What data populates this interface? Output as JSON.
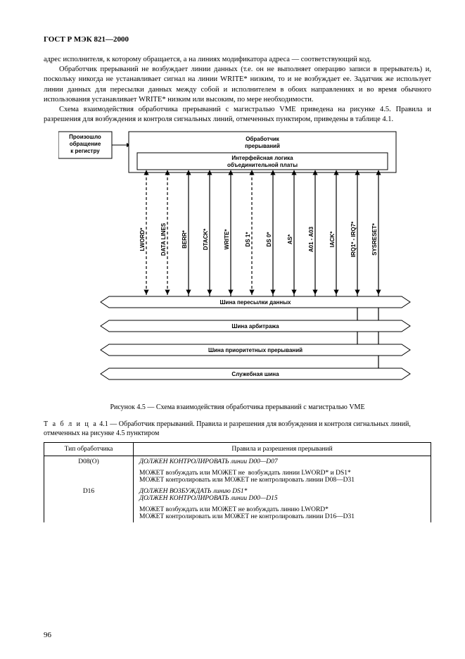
{
  "header": "ГОСТ Р МЭК 821—2000",
  "para1": "адрес исполнителя, к которому обращается, а на линиях модификатора адреса — соответствующий код.",
  "para2": "Обработчик прерываний не возбуждает линии данных (т.е. он не выполняет операцию записи в прерыватель) и, поскольку никогда не устанавливает сигнал на линии WRITE* низким, то и не возбуждает ее. Задатчик же использует линии данных для пересылки данных между собой и исполнителем в обоих направлениях и во время обычного использования устанавливает WRITE* низким или высоким, по мере необходимости.",
  "para3": "Схема взаимодействия обработчика прерываний с магистралью VME приведена на рисунке 4.5. Правила и разрешения для возбуждения и контроля сигнальных линий, отмеченных пунктиром, приведены в таблице 4.1.",
  "caption": "Рисунок 4.5 — Схема взаимодействия обработчика прерываний с магистралью VME",
  "table_title_a": "Т а б л и ц а",
  "table_title_b": "4.1 — Обработчик прерываний. Правила и разрешения для возбуждения и контроля сигнальных линий, отмеченных на рисунке 4.5 пунктиром",
  "th1": "Тип обработчика",
  "th2": "Правила и разрешения прерываний",
  "r1c1": "D08(O)",
  "r1l1": "ДОЛЖЕН КОНТРОЛИРОВАТЬ линии D00—D07",
  "r1l2": "МОЖЕТ возбуждать или МОЖЕТ не  возбуждать линии LWORD* и DS1*",
  "r1l3": "МОЖЕТ контролировать или МОЖЕТ не контролировать линии D08—D31",
  "r2c1": "D16",
  "r2l1": "ДОЛЖЕН ВОЗБУЖДАТЬ линию DS1*",
  "r2l2": "ДОЛЖЕН КОНТРОЛИРОВАТЬ линии D00—D15",
  "r2l3": "МОЖЕТ возбуждать или МОЖЕТ не возбуждать линию LWORD*",
  "r2l4": "МОЖЕТ контролировать или МОЖЕТ не контролировать линии D16—D31",
  "pagenum": "96",
  "diagram": {
    "top_left_box": [
      "Произошло",
      "обращение",
      "к регистру"
    ],
    "top_right_box": [
      "Обработчик",
      "прерываний"
    ],
    "inner_box": [
      "Интерфейсная логика",
      "объединительной платы"
    ],
    "signals": [
      {
        "label": "LWORD*",
        "dashed": true,
        "arrows": "up"
      },
      {
        "label": "DATA LINES",
        "dashed": true,
        "arrows": "down"
      },
      {
        "label": "BERR*",
        "dashed": false,
        "arrows": "down"
      },
      {
        "label": "DTACK*",
        "dashed": false,
        "arrows": "down"
      },
      {
        "label": "WRITE*",
        "dashed": false,
        "arrows": "up"
      },
      {
        "label": "DS 1*",
        "dashed": true,
        "arrows": "up"
      },
      {
        "label": "DS 0*",
        "dashed": false,
        "arrows": "up"
      },
      {
        "label": "AS*",
        "dashed": false,
        "arrows": "up"
      },
      {
        "label": "A01 - A03",
        "dashed": false,
        "arrows": "up"
      },
      {
        "label": "IACK*",
        "dashed": false,
        "arrows": "up"
      },
      {
        "label": "IRQ1* - IRQ7*",
        "dashed": false,
        "arrows": "down"
      },
      {
        "label": "SYSRESET*",
        "dashed": false,
        "arrows": "down"
      }
    ],
    "buses": [
      "Шина пересылки данных",
      "Шина арбитража",
      "Шина приоритетных прерываний",
      "Служебная шина"
    ],
    "colors": {
      "stroke": "#000000",
      "fill": "#ffffff"
    },
    "font_family": "Arial"
  }
}
